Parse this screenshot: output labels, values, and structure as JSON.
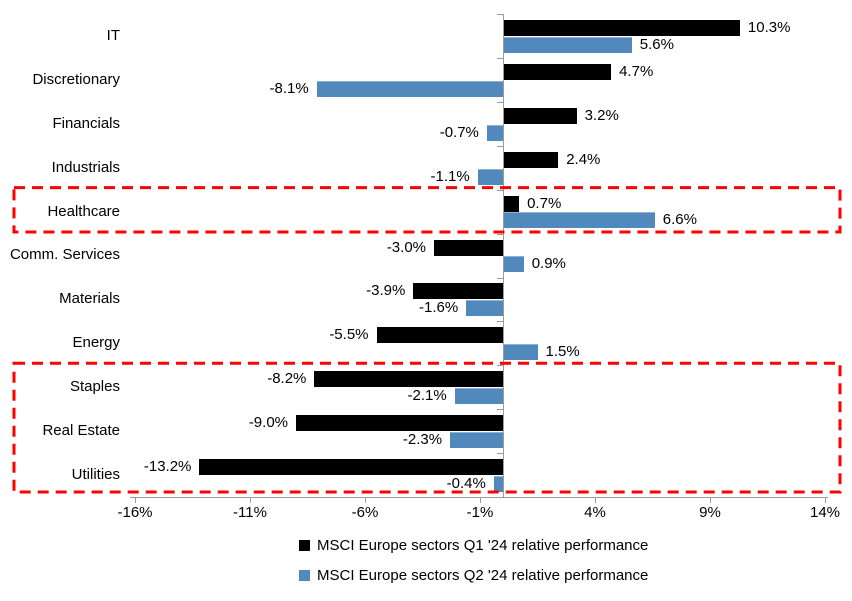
{
  "chart_data": {
    "type": "bar",
    "orientation": "horizontal",
    "title": "",
    "categories": [
      "IT",
      "Discretionary",
      "Financials",
      "Industrials",
      "Healthcare",
      "Comm. Services",
      "Materials",
      "Energy",
      "Staples",
      "Real Estate",
      "Utilities"
    ],
    "series": [
      {
        "name": "MSCI Europe sectors Q1 '24 relative performance",
        "color": "#000000",
        "values": [
          10.3,
          4.7,
          3.2,
          2.4,
          0.7,
          -3.0,
          -3.9,
          -5.5,
          -8.2,
          -9.0,
          -13.2
        ]
      },
      {
        "name": "MSCI Europe sectors Q2 '24 relative performance",
        "color": "#5189BD",
        "values": [
          5.6,
          -8.1,
          -0.7,
          -1.1,
          6.6,
          0.9,
          -1.6,
          1.5,
          -2.1,
          -2.3,
          -0.4
        ]
      }
    ],
    "value_label_suffix": "%",
    "x_axis": {
      "tick_labels": [
        "-16%",
        "-11%",
        "-6%",
        "-1%",
        "4%",
        "9%",
        "14%"
      ],
      "tick_values": [
        -16,
        -11,
        -6,
        -1,
        4,
        9,
        14
      ],
      "min": -16,
      "max": 14
    },
    "legend_position": "bottom",
    "grid": false,
    "colors": {
      "axis": "#9B9B9B",
      "highlight": "#FF0000",
      "text": "#000000"
    },
    "annotations": {
      "highlighted_groups": [
        {
          "categories": [
            "Healthcare"
          ]
        },
        {
          "categories": [
            "Staples",
            "Real Estate",
            "Utilities"
          ]
        }
      ]
    }
  }
}
